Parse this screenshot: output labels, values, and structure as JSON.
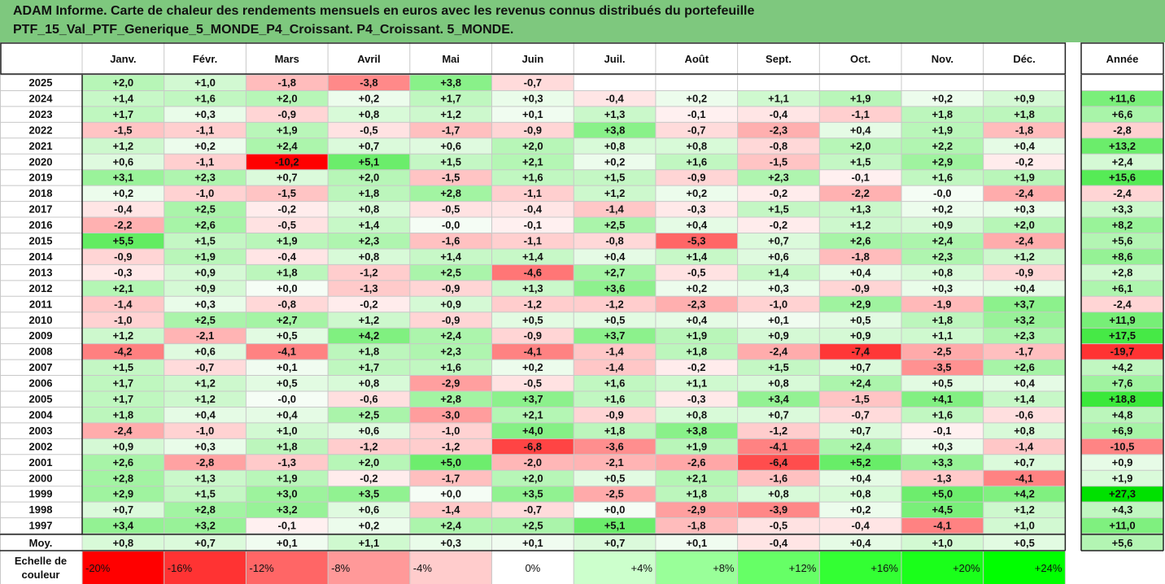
{
  "title": {
    "line1": "ADAM Informe. Carte de chaleur des rendements mensuels en euros avec les revenus connus distribués du portefeuille",
    "line2": "PTF_15_Val_PTF_Generique_5_MONDE_P4_Croissant. P4_Croissant. 5_MONDE."
  },
  "chart_data": {
    "type": "heatmap",
    "title": "ADAM Informe. Carte de chaleur des rendements mensuels en euros avec les revenus connus distribués du portefeuille PTF_15_Val_PTF_Generique_5_MONDE_P4_Croissant. P4_Croissant. 5_MONDE.",
    "corner_label": "",
    "columns": [
      "Janv.",
      "Févr.",
      "Mars",
      "Avril",
      "Mai",
      "Juin",
      "Juil.",
      "Août",
      "Sept.",
      "Oct.",
      "Nov.",
      "Déc."
    ],
    "year_column_label": "Année",
    "rows": [
      {
        "year": "2025",
        "values": [
          "+2,0",
          "+1,0",
          "-1,8",
          "-3,8",
          "+3,8",
          "-0,7",
          "",
          "",
          "",
          "",
          "",
          ""
        ],
        "annual": ""
      },
      {
        "year": "2024",
        "values": [
          "+1,4",
          "+1,6",
          "+2,0",
          "+0,2",
          "+1,7",
          "+0,3",
          "-0,4",
          "+0,2",
          "+1,1",
          "+1,9",
          "+0,2",
          "+0,9"
        ],
        "annual": "+11,6"
      },
      {
        "year": "2023",
        "values": [
          "+1,7",
          "+0,3",
          "-0,9",
          "+0,8",
          "+1,2",
          "+0,1",
          "+1,3",
          "-0,1",
          "-0,4",
          "-1,1",
          "+1,8",
          "+1,8"
        ],
        "annual": "+6,6"
      },
      {
        "year": "2022",
        "values": [
          "-1,5",
          "-1,1",
          "+1,9",
          "-0,5",
          "-1,7",
          "-0,9",
          "+3,8",
          "-0,7",
          "-2,3",
          "+0,4",
          "+1,9",
          "-1,8"
        ],
        "annual": "-2,8"
      },
      {
        "year": "2021",
        "values": [
          "+1,2",
          "+0,2",
          "+2,4",
          "+0,7",
          "+0,6",
          "+2,0",
          "+0,8",
          "+0,8",
          "-0,8",
          "+2,0",
          "+2,2",
          "+0,4"
        ],
        "annual": "+13,2"
      },
      {
        "year": "2020",
        "values": [
          "+0,6",
          "-1,1",
          "-10,2",
          "+5,1",
          "+1,5",
          "+2,1",
          "+0,2",
          "+1,6",
          "-1,5",
          "+1,5",
          "+2,9",
          "-0,2"
        ],
        "annual": "+2,4"
      },
      {
        "year": "2019",
        "values": [
          "+3,1",
          "+2,3",
          "+0,7",
          "+2,0",
          "-1,5",
          "+1,6",
          "+1,5",
          "-0,9",
          "+2,3",
          "-0,1",
          "+1,6",
          "+1,9"
        ],
        "annual": "+15,6"
      },
      {
        "year": "2018",
        "values": [
          "+0,2",
          "-1,0",
          "-1,5",
          "+1,8",
          "+2,8",
          "-1,1",
          "+1,2",
          "+0,2",
          "-0,2",
          "-2,2",
          "-0,0",
          "-2,4"
        ],
        "annual": "-2,4"
      },
      {
        "year": "2017",
        "values": [
          "-0,4",
          "+2,5",
          "-0,2",
          "+0,8",
          "-0,5",
          "-0,4",
          "-1,4",
          "-0,3",
          "+1,5",
          "+1,3",
          "+0,2",
          "+0,3"
        ],
        "annual": "+3,3"
      },
      {
        "year": "2016",
        "values": [
          "-2,2",
          "+2,6",
          "-0,5",
          "+1,4",
          "-0,0",
          "-0,1",
          "+2,5",
          "+0,4",
          "-0,2",
          "+1,2",
          "+0,9",
          "+2,0"
        ],
        "annual": "+8,2"
      },
      {
        "year": "2015",
        "values": [
          "+5,5",
          "+1,5",
          "+1,9",
          "+2,3",
          "-1,6",
          "-1,1",
          "-0,8",
          "-5,3",
          "+0,7",
          "+2,6",
          "+2,4",
          "-2,4"
        ],
        "annual": "+5,6"
      },
      {
        "year": "2014",
        "values": [
          "-0,9",
          "+1,9",
          "-0,4",
          "+0,8",
          "+1,4",
          "+1,4",
          "+0,4",
          "+1,4",
          "+0,6",
          "-1,8",
          "+2,3",
          "+1,2"
        ],
        "annual": "+8,6"
      },
      {
        "year": "2013",
        "values": [
          "-0,3",
          "+0,9",
          "+1,8",
          "-1,2",
          "+2,5",
          "-4,6",
          "+2,7",
          "-0,5",
          "+1,4",
          "+0,4",
          "+0,8",
          "-0,9"
        ],
        "annual": "+2,8"
      },
      {
        "year": "2012",
        "values": [
          "+2,1",
          "+0,9",
          "+0,0",
          "-1,3",
          "-0,9",
          "+1,3",
          "+3,6",
          "+0,2",
          "+0,3",
          "-0,9",
          "+0,3",
          "+0,4"
        ],
        "annual": "+6,1"
      },
      {
        "year": "2011",
        "values": [
          "-1,4",
          "+0,3",
          "-0,8",
          "-0,2",
          "+0,9",
          "-1,2",
          "-1,2",
          "-2,3",
          "-1,0",
          "+2,9",
          "-1,9",
          "+3,7"
        ],
        "annual": "-2,4"
      },
      {
        "year": "2010",
        "values": [
          "-1,0",
          "+2,5",
          "+2,7",
          "+1,2",
          "-0,9",
          "+0,5",
          "+0,5",
          "+0,4",
          "+0,1",
          "+0,5",
          "+1,8",
          "+3,2"
        ],
        "annual": "+11,9"
      },
      {
        "year": "2009",
        "values": [
          "+1,2",
          "-2,1",
          "+0,5",
          "+4,2",
          "+2,4",
          "-0,9",
          "+3,7",
          "+1,9",
          "+0,9",
          "+0,9",
          "+1,1",
          "+2,3"
        ],
        "annual": "+17,5"
      },
      {
        "year": "2008",
        "values": [
          "-4,2",
          "+0,6",
          "-4,1",
          "+1,8",
          "+2,3",
          "-4,1",
          "-1,4",
          "+1,8",
          "-2,4",
          "-7,4",
          "-2,5",
          "-1,7"
        ],
        "annual": "-19,7"
      },
      {
        "year": "2007",
        "values": [
          "+1,5",
          "-0,7",
          "+0,1",
          "+1,7",
          "+1,6",
          "+0,2",
          "-1,4",
          "-0,2",
          "+1,5",
          "+0,7",
          "-3,5",
          "+2,6"
        ],
        "annual": "+4,2"
      },
      {
        "year": "2006",
        "values": [
          "+1,7",
          "+1,2",
          "+0,5",
          "+0,8",
          "-2,9",
          "-0,5",
          "+1,6",
          "+1,1",
          "+0,8",
          "+2,4",
          "+0,5",
          "+0,4"
        ],
        "annual": "+7,6"
      },
      {
        "year": "2005",
        "values": [
          "+1,7",
          "+1,2",
          "-0,0",
          "-0,6",
          "+2,8",
          "+3,7",
          "+1,6",
          "-0,3",
          "+3,4",
          "-1,5",
          "+4,1",
          "+1,4"
        ],
        "annual": "+18,8"
      },
      {
        "year": "2004",
        "values": [
          "+1,8",
          "+0,4",
          "+0,4",
          "+2,5",
          "-3,0",
          "+2,1",
          "-0,9",
          "+0,8",
          "+0,7",
          "-0,7",
          "+1,6",
          "-0,6"
        ],
        "annual": "+4,8"
      },
      {
        "year": "2003",
        "values": [
          "-2,4",
          "-1,0",
          "+1,0",
          "+0,6",
          "-1,0",
          "+4,0",
          "+1,8",
          "+3,8",
          "-1,2",
          "+0,7",
          "-0,1",
          "+0,8"
        ],
        "annual": "+6,9"
      },
      {
        "year": "2002",
        "values": [
          "+0,9",
          "+0,3",
          "+1,8",
          "-1,2",
          "-1,2",
          "-6,8",
          "-3,6",
          "+1,9",
          "-4,1",
          "+2,4",
          "+0,3",
          "-1,4"
        ],
        "annual": "-10,5"
      },
      {
        "year": "2001",
        "values": [
          "+2,6",
          "-2,8",
          "-1,3",
          "+2,0",
          "+5,0",
          "-2,0",
          "-2,1",
          "-2,6",
          "-6,4",
          "+5,2",
          "+3,3",
          "+0,7"
        ],
        "annual": "+0,9"
      },
      {
        "year": "2000",
        "values": [
          "+2,8",
          "+1,3",
          "+1,9",
          "-0,2",
          "-1,7",
          "+2,0",
          "+0,5",
          "+2,1",
          "-1,6",
          "+0,4",
          "-1,3",
          "-4,1"
        ],
        "annual": "+1,9"
      },
      {
        "year": "1999",
        "values": [
          "+2,9",
          "+1,5",
          "+3,0",
          "+3,5",
          "+0,0",
          "+3,5",
          "-2,5",
          "+1,8",
          "+0,8",
          "+0,8",
          "+5,0",
          "+4,2"
        ],
        "annual": "+27,3"
      },
      {
        "year": "1998",
        "values": [
          "+0,7",
          "+2,8",
          "+3,2",
          "+0,6",
          "-1,4",
          "-0,7",
          "+0,0",
          "-2,9",
          "-3,9",
          "+0,2",
          "+4,5",
          "+1,2"
        ],
        "annual": "+4,3"
      },
      {
        "year": "1997",
        "values": [
          "+3,4",
          "+3,2",
          "-0,1",
          "+0,2",
          "+2,4",
          "+2,5",
          "+5,1",
          "-1,8",
          "-0,5",
          "-0,4",
          "-4,1",
          "+1,0"
        ],
        "annual": "+11,0"
      }
    ],
    "average": {
      "label": "Moy.",
      "values": [
        "+0,8",
        "+0,7",
        "+0,1",
        "+1,1",
        "+0,3",
        "+0,1",
        "+0,7",
        "+0,1",
        "-0,4",
        "+0,4",
        "+1,0",
        "+0,5"
      ],
      "annual": "+5,6"
    },
    "color_scale": {
      "label_line1": "Echelle de",
      "label_line2": "couleur",
      "stops": [
        {
          "label": "-20%",
          "color": "#ff0000",
          "align": "left"
        },
        {
          "label": "-16%",
          "color": "#ff3333",
          "align": "left"
        },
        {
          "label": "-12%",
          "color": "#ff6666",
          "align": "left"
        },
        {
          "label": "-8%",
          "color": "#ff9999",
          "align": "left"
        },
        {
          "label": "-4%",
          "color": "#ffcccc",
          "align": "left"
        },
        {
          "label": "0%",
          "color": "#ffffff",
          "align": "center"
        },
        {
          "label": "+4%",
          "color": "#ccffcc",
          "align": "right"
        },
        {
          "label": "+8%",
          "color": "#99ff99",
          "align": "right"
        },
        {
          "label": "+12%",
          "color": "#66ff66",
          "align": "right"
        },
        {
          "label": "+16%",
          "color": "#33ff33",
          "align": "right"
        },
        {
          "label": "+20%",
          "color": "#1aff1a",
          "align": "right"
        },
        {
          "label": "+24%",
          "color": "#00ff00",
          "align": "right"
        }
      ]
    },
    "colors": {
      "header_bg": "#7ec87e",
      "negative_max": "#ff0000",
      "positive_max": "#00dd00",
      "neutral": "#ffffff"
    }
  }
}
